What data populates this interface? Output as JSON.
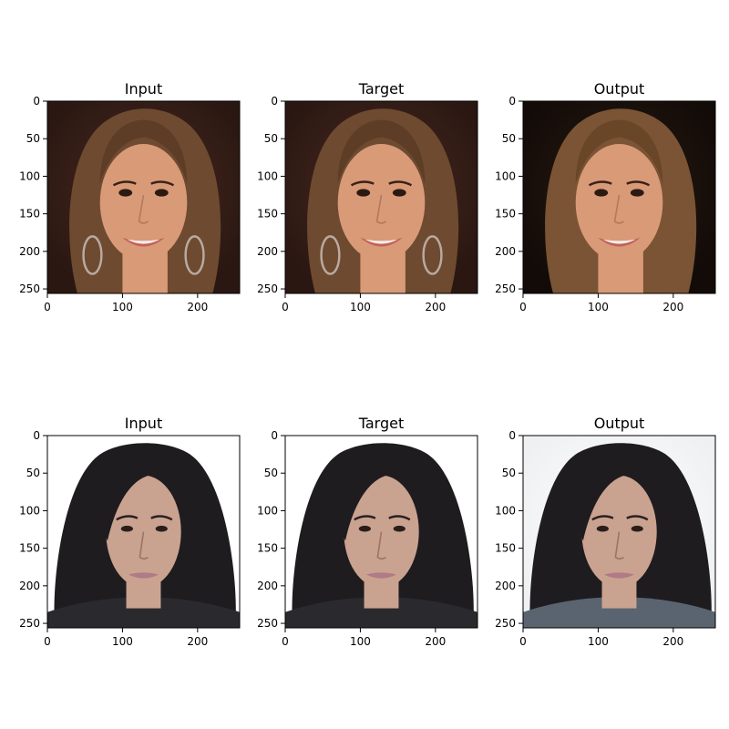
{
  "figure": {
    "panels": [
      {
        "title": "Input",
        "row": 0,
        "col": 0,
        "image": "face-portrait-woman-smiling-earrings"
      },
      {
        "title": "Target",
        "row": 0,
        "col": 1,
        "image": "face-portrait-woman-smiling-earrings"
      },
      {
        "title": "Output",
        "row": 0,
        "col": 2,
        "image": "face-portrait-woman-smiling-generated"
      },
      {
        "title": "Input",
        "row": 1,
        "col": 0,
        "image": "face-portrait-man-long-hair"
      },
      {
        "title": "Target",
        "row": 1,
        "col": 1,
        "image": "face-portrait-man-long-hair"
      },
      {
        "title": "Output",
        "row": 1,
        "col": 2,
        "image": "face-portrait-man-long-hair-generated"
      }
    ],
    "axes": {
      "x_ticks": [
        0,
        100,
        200
      ],
      "y_ticks": [
        0,
        50,
        100,
        150,
        200,
        250
      ],
      "xlim": [
        0,
        256
      ],
      "ylim": [
        256,
        0
      ]
    },
    "colors": {
      "woman_background": "#2a1712",
      "woman_hair": "#6e4a30",
      "woman_skin": "#d99a78",
      "woman_output_background": "#120b08",
      "man_background": "#ffffff",
      "man_hair": "#1e1c1f",
      "man_skin": "#caa290",
      "man_output_background": "#eef0f2",
      "lips_woman": "#c4605a",
      "lips_man": "#b07a86"
    }
  }
}
